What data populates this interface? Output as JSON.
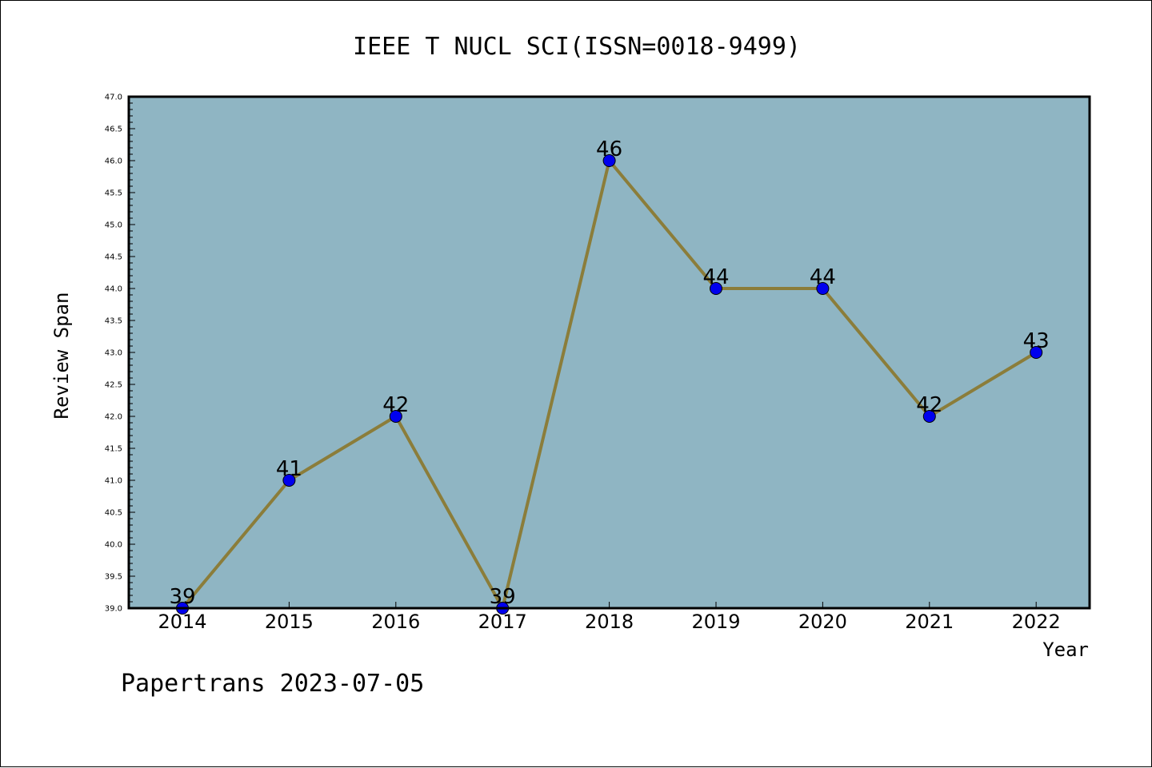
{
  "chart_data": {
    "type": "line",
    "title": "IEEE T NUCL SCI(ISSN=0018-9499)",
    "xlabel": "Year",
    "ylabel": "Review Span",
    "categories": [
      "2014",
      "2015",
      "2016",
      "2017",
      "2018",
      "2019",
      "2020",
      "2021",
      "2022"
    ],
    "series": [
      {
        "values": [
          39,
          41,
          42,
          39,
          46,
          44,
          44,
          42,
          43
        ]
      }
    ],
    "data_labels": [
      "39",
      "41",
      "42",
      "39",
      "46",
      "44",
      "44",
      "42",
      "43"
    ],
    "ylim": [
      39.0,
      47.0
    ],
    "yticks": [
      "39.0",
      "39.5",
      "40.0",
      "40.5",
      "41.0",
      "41.5",
      "42.0",
      "42.5",
      "43.0",
      "43.5",
      "44.0",
      "44.5",
      "45.0",
      "45.5",
      "46.0",
      "46.5",
      "47.0"
    ],
    "grid": false,
    "colors": {
      "plot_background": "#8fb5c3",
      "line": "#8b7d3a",
      "marker": "#0000ee"
    }
  },
  "footer": "Papertrans 2023-07-05"
}
